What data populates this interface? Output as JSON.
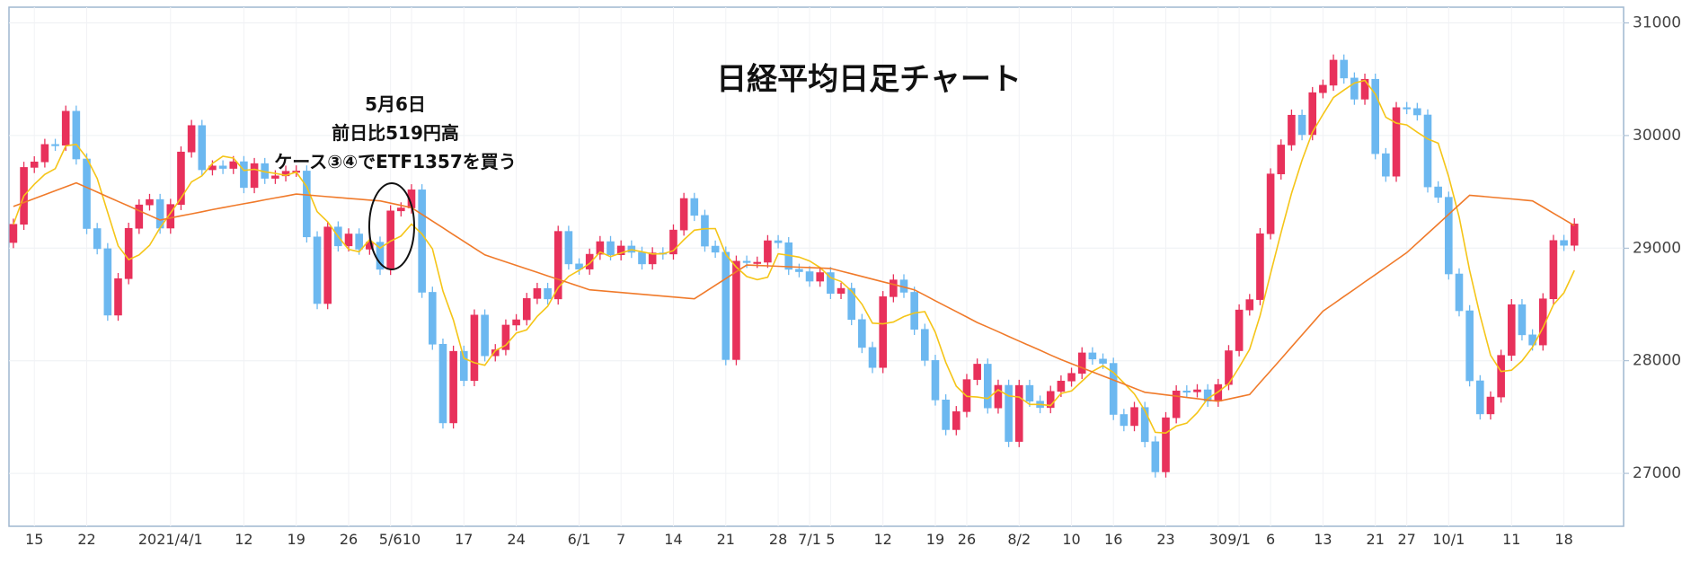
{
  "chart_data": {
    "type": "candlestick",
    "title": "日経平均日足チャート",
    "annotation": {
      "lines": [
        "5月6日",
        "前日比519円高",
        "ケース③④でETF1357を買う"
      ]
    },
    "categories": [
      null,
      null,
      "15",
      null,
      null,
      null,
      null,
      "22",
      null,
      null,
      null,
      null,
      null,
      null,
      null,
      "2021/4/1",
      null,
      null,
      null,
      null,
      null,
      null,
      "12",
      null,
      null,
      null,
      null,
      "19",
      null,
      null,
      null,
      null,
      "26",
      null,
      null,
      null,
      "5/6",
      null,
      "10",
      null,
      null,
      null,
      null,
      "17",
      null,
      null,
      null,
      null,
      "24",
      null,
      null,
      null,
      null,
      null,
      "6/1",
      null,
      null,
      null,
      "7",
      null,
      null,
      null,
      null,
      "14",
      null,
      null,
      null,
      null,
      "21",
      null,
      null,
      null,
      null,
      "28",
      null,
      null,
      "7/1",
      null,
      "5",
      null,
      null,
      null,
      null,
      "12",
      null,
      null,
      null,
      null,
      "19",
      null,
      null,
      "26",
      null,
      null,
      null,
      null,
      "8/2",
      null,
      null,
      null,
      null,
      "10",
      null,
      null,
      null,
      "16",
      null,
      null,
      null,
      null,
      "23",
      null,
      null,
      null,
      null,
      "30",
      null,
      "9/1",
      null,
      null,
      "6",
      null,
      null,
      null,
      null,
      "13",
      null,
      null,
      null,
      null,
      "21",
      null,
      null,
      "27",
      null,
      null,
      null,
      "10/1",
      null,
      null,
      null,
      null,
      null,
      "11",
      null,
      null,
      null,
      null,
      "18",
      null
    ],
    "open": [
      29050,
      29212,
      29717,
      29766,
      29921,
      29914,
      30216,
      29792,
      29174,
      28995,
      28405,
      28729,
      29176,
      29384,
      29432,
      29178,
      29388,
      29854,
      30089,
      29696,
      29730,
      29708,
      29768,
      29538,
      29751,
      29620,
      29642,
      29683,
      29685,
      29100,
      28508,
      29188,
      29020,
      29126,
      28991,
      29053,
      28812,
      29331,
      29357,
      29518,
      28608,
      28147,
      27448,
      28084,
      27824,
      28406,
      28044,
      28098,
      28317,
      28364,
      28553,
      28642,
      28549,
      29149,
      28860,
      28814,
      28946,
      29058,
      28941,
      29019,
      28963,
      28860,
      28958,
      28948,
      29161,
      29441,
      29291,
      29018,
      28964,
      28010,
      28884,
      28874,
      28875,
      29066,
      29048,
      28812,
      28791,
      28707,
      28783,
      28598,
      28643,
      28366,
      28118,
      27940,
      28569,
      28718,
      28608,
      28279,
      28003,
      27652,
      27388,
      27548,
      27833,
      27970,
      27581,
      27782,
      27283,
      27781,
      27641,
      27584,
      27728,
      27820,
      27888,
      28070,
      28015,
      27977,
      27523,
      27424,
      27585,
      27281,
      27013,
      27494,
      27732,
      27724,
      27742,
      27641,
      27789,
      28089,
      28451,
      28543,
      29128,
      29659,
      29916,
      30181,
      30008,
      30381,
      30447,
      30670,
      30511,
      30323,
      30500,
      29839,
      29639,
      30248,
      30240,
      30183,
      29544,
      29452,
      28771,
      28444,
      27822,
      27528,
      27678,
      28048,
      28498,
      28230,
      28140,
      28550,
      29068,
      29025
    ],
    "high": [
      29262,
      29767,
      29816,
      29971,
      29971,
      30266,
      30266,
      29842,
      29224,
      29045,
      28779,
      29226,
      29434,
      29482,
      29482,
      29438,
      29904,
      30139,
      30139,
      29780,
      29780,
      29818,
      29818,
      29801,
      29801,
      29692,
      29733,
      29735,
      29735,
      29150,
      29238,
      29238,
      29176,
      29176,
      29103,
      29103,
      29381,
      29407,
      29568,
      29568,
      28658,
      28197,
      28134,
      28134,
      28456,
      28456,
      28148,
      28367,
      28414,
      28603,
      28692,
      28692,
      29199,
      29199,
      28910,
      28996,
      29108,
      29108,
      29069,
      29069,
      29013,
      29008,
      29008,
      29211,
      29491,
      29491,
      29341,
      29068,
      29014,
      28934,
      28934,
      28925,
      29116,
      29116,
      29098,
      28862,
      28841,
      28833,
      28833,
      28693,
      28693,
      28416,
      28168,
      28619,
      28768,
      28768,
      28658,
      28329,
      28053,
      27702,
      27598,
      27883,
      28020,
      28020,
      27832,
      27832,
      27831,
      27831,
      27691,
      27778,
      27870,
      27938,
      28120,
      28120,
      28065,
      28027,
      27573,
      27635,
      27635,
      27331,
      27544,
      27782,
      27782,
      27792,
      27792,
      27839,
      28139,
      28501,
      28593,
      29178,
      29709,
      29966,
      30231,
      30231,
      30431,
      30497,
      30720,
      30720,
      30561,
      30550,
      30550,
      29889,
      30298,
      30298,
      30290,
      30233,
      29594,
      29502,
      28821,
      28494,
      27872,
      27728,
      28098,
      28548,
      28548,
      28280,
      28600,
      29118,
      29118,
      29265
    ],
    "low": [
      29000,
      29162,
      29667,
      29716,
      29864,
      29864,
      29742,
      29124,
      28945,
      28355,
      28355,
      28679,
      29126,
      29334,
      29128,
      29128,
      29338,
      29804,
      29646,
      29646,
      29658,
      29658,
      29488,
      29488,
      29570,
      29570,
      29592,
      29633,
      29050,
      28458,
      28458,
      28970,
      28970,
      28941,
      28941,
      28762,
      28762,
      29281,
      29307,
      28558,
      28097,
      27398,
      27398,
      27774,
      27774,
      27994,
      27994,
      28048,
      28267,
      28314,
      28503,
      28499,
      28499,
      28810,
      28764,
      28764,
      28896,
      28891,
      28891,
      28913,
      28810,
      28810,
      28898,
      28898,
      29111,
      29241,
      28968,
      28914,
      27960,
      27960,
      28824,
      28824,
      28825,
      28998,
      28762,
      28741,
      28657,
      28657,
      28548,
      28548,
      28316,
      28068,
      27890,
      27890,
      28519,
      28558,
      28229,
      27953,
      27602,
      27338,
      27338,
      27498,
      27783,
      27531,
      27531,
      27233,
      27233,
      27591,
      27534,
      27534,
      27678,
      27770,
      27838,
      27965,
      27927,
      27473,
      27374,
      27374,
      27231,
      26963,
      26963,
      27444,
      27674,
      27674,
      27591,
      27591,
      27739,
      28039,
      28401,
      28493,
      29078,
      29609,
      29866,
      29958,
      29958,
      30331,
      30397,
      30461,
      30273,
      30273,
      29789,
      29589,
      29589,
      30190,
      30133,
      29494,
      29402,
      28721,
      28394,
      27772,
      27478,
      27478,
      27628,
      27998,
      28180,
      28090,
      28090,
      28500,
      28975,
      28975
    ],
    "close": [
      29212,
      29717,
      29766,
      29921,
      29914,
      30216,
      29792,
      29174,
      28995,
      28405,
      28729,
      29176,
      29384,
      29432,
      29178,
      29388,
      29854,
      30089,
      29696,
      29730,
      29708,
      29768,
      29538,
      29751,
      29620,
      29642,
      29683,
      29685,
      29100,
      28508,
      29188,
      29020,
      29126,
      28991,
      29053,
      28812,
      29331,
      29357,
      29518,
      28608,
      28147,
      27448,
      28084,
      27824,
      28406,
      28044,
      28098,
      28317,
      28364,
      28553,
      28642,
      28549,
      29149,
      28860,
      28814,
      28946,
      29058,
      28941,
      29019,
      28963,
      28860,
      28958,
      28948,
      29161,
      29441,
      29291,
      29018,
      28964,
      28010,
      28884,
      28874,
      28875,
      29066,
      29048,
      28812,
      28791,
      28707,
      28783,
      28598,
      28643,
      28366,
      28118,
      27940,
      28569,
      28718,
      28608,
      28279,
      28003,
      27652,
      27388,
      27548,
      27833,
      27970,
      27581,
      27782,
      27283,
      27781,
      27641,
      27584,
      27728,
      27820,
      27888,
      28070,
      28015,
      27977,
      27523,
      27424,
      27585,
      27281,
      27013,
      27494,
      27732,
      27724,
      27742,
      27641,
      27789,
      28089,
      28451,
      28543,
      29128,
      29659,
      29916,
      30181,
      30008,
      30381,
      30447,
      30670,
      30511,
      30323,
      30500,
      29839,
      29639,
      30248,
      30240,
      30183,
      29544,
      29452,
      28771,
      28444,
      27822,
      27528,
      27678,
      28048,
      28498,
      28230,
      28140,
      28550,
      29068,
      29025,
      29215
    ],
    "up_color": "#e8315b",
    "down_color": "#6cb8f0",
    "moving_averages": [
      {
        "color": "#f5c518",
        "values": [
          29210,
          29465,
          29567,
          29655,
          29706,
          29908,
          29922,
          29802,
          29618,
          29318,
          29020,
          28898,
          28940,
          29026,
          29180,
          29312,
          29446,
          29588,
          29642,
          29752,
          29816,
          29800,
          29690,
          29700,
          29678,
          29664,
          29646,
          29676,
          29546,
          29324,
          29234,
          29102,
          28990,
          28968,
          29076,
          29000,
          29062,
          29108,
          29214,
          29126,
          28994,
          28618,
          28362,
          28022,
          27982,
          27960,
          28090,
          28138,
          28246,
          28274,
          28394,
          28484,
          28650,
          28750,
          28802,
          28864,
          28966,
          28924,
          28956,
          28986,
          28968,
          28948,
          28950,
          28978,
          29074,
          29160,
          29172,
          29174,
          28944,
          28832,
          28748,
          28720,
          28742,
          28950,
          28936,
          28920,
          28886,
          28828,
          28738,
          28704,
          28620,
          28502,
          28334,
          28328,
          28344,
          28392,
          28424,
          28436,
          28252,
          27986,
          27774,
          27684,
          27678,
          27664,
          27742,
          27688,
          27678,
          27612,
          27612,
          27602,
          27710,
          27732,
          27818,
          27906,
          27956,
          27896,
          27802,
          27706,
          27558,
          27364,
          27358,
          27420,
          27446,
          27538,
          27664,
          27724,
          27796,
          27942,
          28102,
          28400,
          28774,
          29140,
          29486,
          29780,
          30030,
          30188,
          30338,
          30404,
          30466,
          30490,
          30368,
          30162,
          30110,
          30094,
          30030,
          29970,
          29932,
          29636,
          29276,
          28804,
          28402,
          28048,
          27904,
          27916,
          27998,
          28120,
          28294,
          28498,
          28604,
          28802
        ]
      },
      {
        "color": "#f07a2a",
        "values": [
          29370,
          29405,
          29440,
          29475,
          29510,
          29545,
          29580,
          29539,
          29498,
          29456,
          29415,
          29374,
          29333,
          29291,
          29250,
          29268,
          29287,
          29305,
          29323,
          29342,
          29360,
          29377,
          29394,
          29411,
          29429,
          29446,
          29463,
          29480,
          29472,
          29465,
          29457,
          29450,
          29442,
          29435,
          29427,
          29420,
          29400,
          29380,
          29360,
          29300,
          29240,
          29180,
          29120,
          29060,
          29000,
          28940,
          28909,
          28878,
          28847,
          28816,
          28785,
          28754,
          28723,
          28692,
          28661,
          28630,
          28622,
          28614,
          28606,
          28598,
          28590,
          28582,
          28574,
          28566,
          28558,
          28550,
          28610,
          28670,
          28730,
          28790,
          28850,
          28846,
          28843,
          28839,
          28835,
          28831,
          28828,
          28824,
          28820,
          28796,
          28773,
          28749,
          28725,
          28701,
          28678,
          28654,
          28630,
          28582,
          28533,
          28485,
          28437,
          28388,
          28340,
          28299,
          28258,
          28216,
          28175,
          28134,
          28093,
          28051,
          28010,
          27974,
          27938,
          27901,
          27865,
          27829,
          27793,
          27756,
          27720,
          27709,
          27697,
          27686,
          27674,
          27663,
          27651,
          27640,
          27660,
          27680,
          27700,
          27806,
          27911,
          28017,
          28123,
          28229,
          28334,
          28440,
          28505,
          28570,
          28635,
          28700,
          28765,
          28830,
          28895,
          28960,
          29045,
          29130,
          29215,
          29300,
          29385,
          29470,
          29462,
          29453,
          29445,
          29437,
          29428,
          29420,
          29365,
          29310,
          29255,
          29200
        ]
      }
    ],
    "ylim": [
      26530,
      31140
    ],
    "yticks": [
      27000,
      28000,
      29000,
      30000,
      31000
    ],
    "grid": true
  }
}
